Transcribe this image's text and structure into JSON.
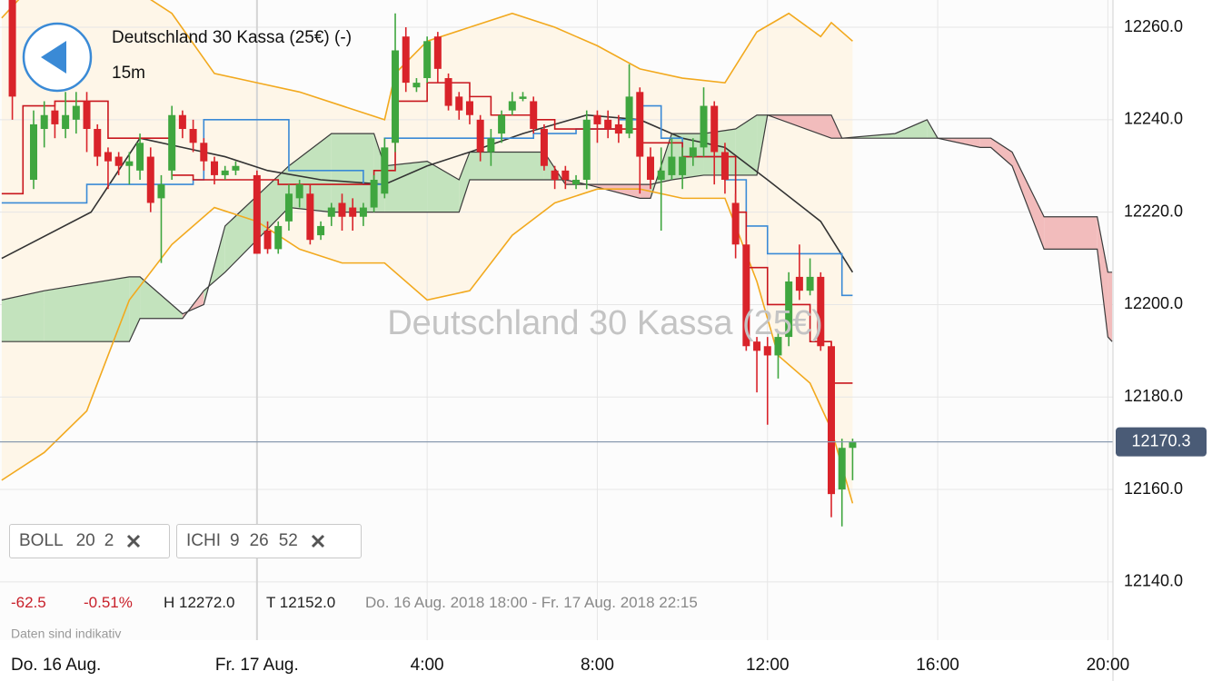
{
  "chart_data": {
    "type": "candlestick",
    "title": "Deutschland 30 Kassa (25€) (-)",
    "interval": "15m",
    "watermark": "Deutschland 30 Kassa (25€)",
    "start_label": "Do. 16 Aug.",
    "x": [
      -5.75,
      -5.25,
      -5,
      -4.75,
      -4.5,
      -4.25,
      -4,
      -3.75,
      -3.5,
      -3.25,
      -3,
      -2.75,
      -2.5,
      -2.25,
      -2,
      -1.75,
      -1.5,
      -1.25,
      -1,
      -0.75,
      -0.5,
      0,
      0.25,
      0.5,
      0.75,
      1,
      1.25,
      1.5,
      1.75,
      2,
      2.25,
      2.5,
      2.75,
      3,
      3.25,
      3.5,
      3.75,
      4,
      4.25,
      4.5,
      4.75,
      5,
      5.25,
      5.5,
      5.75,
      6,
      6.25,
      6.5,
      6.75,
      7,
      7.25,
      7.5,
      7.75,
      8,
      8.25,
      8.5,
      8.75,
      9,
      9.25,
      9.5,
      9.75,
      10,
      10.25,
      10.5,
      10.75,
      11,
      11.25,
      11.5,
      11.75,
      12,
      12.25,
      12.5,
      12.75,
      13,
      13.25,
      13.5,
      13.75,
      14
    ],
    "open": [
      12266,
      12227,
      12238,
      12242,
      12238,
      12240,
      12244,
      12238,
      12233,
      12232,
      12230,
      12229,
      12232,
      12223,
      12229,
      12241,
      12238,
      12235,
      12231,
      12228,
      12229,
      12228,
      12216,
      12212,
      12218,
      12223,
      12224,
      12215,
      12219,
      12222,
      12221,
      12219,
      12221,
      12224,
      12235,
      12258,
      12247,
      12249,
      12258,
      12249,
      12245,
      12244,
      12240,
      12233,
      12237,
      12242,
      12244.5,
      12244,
      12238,
      12229,
      12229,
      12226,
      12227,
      12241,
      12240,
      12239,
      12237,
      12246,
      12232,
      12227,
      12228,
      12228,
      12232,
      12234,
      12243,
      12233,
      12222,
      12213,
      12192,
      12191,
      12189,
      12193,
      12206,
      12203,
      12206,
      12191,
      12160,
      12169
    ],
    "high": [
      12268,
      12242,
      12244,
      12244,
      12246,
      12246,
      12246,
      12239,
      12234,
      12233,
      12233,
      12237,
      12234,
      12228,
      12243,
      12242,
      12240,
      12236,
      12232,
      12230,
      12231,
      12229,
      12218,
      12218,
      12226,
      12227,
      12226,
      12218,
      12222,
      12224,
      12223,
      12222,
      12228,
      12236,
      12263,
      12260,
      12249,
      12258,
      12259,
      12250,
      12246,
      12245,
      12241,
      12238,
      12242,
      12246,
      12246,
      12245,
      12239,
      12230,
      12230,
      12228,
      12242,
      12242,
      12242,
      12241,
      12252,
      12247,
      12234,
      12234,
      12236,
      12234,
      12236,
      12247,
      12244,
      12235,
      12224,
      12214,
      12193,
      12193,
      12194,
      12207,
      12213,
      12210,
      12207,
      12192,
      12171,
      12171
    ],
    "low": [
      12240,
      12225,
      12234,
      12236,
      12236,
      12237,
      12233,
      12230,
      12225,
      12228,
      12226,
      12227,
      12220,
      12209,
      12227,
      12236,
      12233,
      12229,
      12226,
      12227,
      12228,
      12211,
      12211,
      12211,
      12216,
      12221,
      12213,
      12214,
      12217,
      12216,
      12216,
      12217,
      12220,
      12223,
      12233,
      12246,
      12246,
      12248,
      12248,
      12242,
      12240,
      12239,
      12231,
      12230,
      12235,
      12241,
      12244,
      12237,
      12229,
      12225,
      12225,
      12225,
      12225,
      12235,
      12236,
      12235,
      12236,
      12224,
      12225,
      12216,
      12227,
      12225,
      12230,
      12232,
      12226,
      12224,
      12210,
      12190,
      12181,
      12174,
      12184,
      12191,
      12201,
      12202,
      12190,
      12154,
      12152,
      12162
    ],
    "close": [
      12245,
      12239,
      12241,
      12239,
      12241,
      12243,
      12238,
      12232,
      12231,
      12230,
      12231,
      12235,
      12222,
      12226,
      12241,
      12238,
      12235,
      12231,
      12228,
      12229,
      12230,
      12211,
      12212,
      12217,
      12224,
      12226,
      12214,
      12217,
      12221,
      12219,
      12219,
      12221,
      12227,
      12234,
      12255,
      12248,
      12248,
      12257,
      12251,
      12243,
      12242,
      12241,
      12233,
      12236,
      12241,
      12244,
      12245,
      12238,
      12230,
      12227,
      12227,
      12227,
      12240,
      12239,
      12238,
      12237,
      12245,
      12232,
      12227,
      12229,
      12232,
      12232,
      12234,
      12243,
      12233,
      12227,
      12213,
      12191,
      12190,
      12189,
      12193,
      12205,
      12203,
      12206,
      12191,
      12159,
      12169,
      12170.3
    ],
    "up_color": "#3fa63f",
    "down_color": "#d9232a",
    "xlim": [
      -6.04,
      20.12
    ],
    "xticks": [
      {
        "value": 0,
        "label": "Fr. 17 Aug."
      },
      {
        "value": 4,
        "label": "4:00"
      },
      {
        "value": 8,
        "label": "8:00"
      },
      {
        "value": 12,
        "label": "12:00"
      },
      {
        "value": 16,
        "label": "16:00"
      },
      {
        "value": 20,
        "label": "20:00"
      }
    ],
    "ylim": [
      12127.4,
      12265.9
    ],
    "yticks": [
      {
        "value": 12140,
        "label": "12140.0"
      },
      {
        "value": 12160,
        "label": "12160.0"
      },
      {
        "value": 12180,
        "label": "12180.0"
      },
      {
        "value": 12200,
        "label": "12200.0"
      },
      {
        "value": 12220,
        "label": "12220.0"
      },
      {
        "value": 12240,
        "label": "12240.0"
      },
      {
        "value": 12260,
        "label": "12260.0"
      }
    ],
    "grid": true,
    "current_price": 12170.3,
    "bollinger": {
      "fill": "#fef6e8",
      "upper": {
        "color": "#f2a91e",
        "x": [
          -6,
          -5,
          -3.5,
          -2,
          -1,
          0,
          1,
          2,
          3,
          3.25,
          4,
          5,
          6,
          7,
          8,
          9,
          10,
          11,
          11.75,
          12.5,
          13.25,
          13.5,
          14
        ],
        "values": [
          12262,
          12272,
          12272,
          12263,
          12250,
          12248,
          12246,
          12243,
          12240,
          12250,
          12257,
          12260,
          12263,
          12260,
          12256,
          12251,
          12249,
          12248,
          12259,
          12263,
          12258,
          12261,
          12257
        ]
      },
      "middle": {
        "color": "#333333",
        "x": [
          -6,
          -3.9,
          -2.75,
          -1.75,
          -0.75,
          0.25,
          1.5,
          3,
          4,
          5,
          6.25,
          7.75,
          9,
          10,
          11,
          12,
          13.25,
          14
        ],
        "values": [
          12210,
          12220,
          12236,
          12234,
          12232,
          12229,
          12227,
          12226,
          12230,
          12233,
          12237,
          12241,
          12240,
          12236,
          12234,
          12227,
          12218,
          12207
        ]
      },
      "lower": {
        "color": "#f2a91e",
        "x": [
          -6,
          -5,
          -4,
          -3,
          -2,
          -1,
          0,
          1,
          2,
          3,
          4,
          5,
          6,
          7,
          8,
          9,
          10,
          11,
          11.75,
          12.25,
          13,
          13.5,
          14
        ],
        "values": [
          12162,
          12168,
          12177,
          12201,
          12213,
          12221,
          12218,
          12212,
          12209,
          12209,
          12201,
          12203,
          12215,
          12222,
          12225,
          12225,
          12223,
          12223,
          12205,
          12189,
          12183,
          12173,
          12157
        ]
      }
    },
    "ichimoku": {
      "tenkan": {
        "color": "#c8161d",
        "x": [
          -6,
          -5.5,
          -4.75,
          -4,
          -3.5,
          -2.5,
          -2,
          -1.5,
          -0.5,
          0,
          0.5,
          1,
          2,
          2.75,
          3.25,
          4,
          5,
          5.5,
          6.5,
          7,
          7.5,
          8.5,
          9,
          10,
          11,
          11.25,
          11.5,
          12,
          12.5,
          13,
          13.5,
          14
        ],
        "values": [
          12224,
          12243,
          12244,
          12244,
          12236,
          12236,
          12228,
          12227,
          12227,
          12227,
          12226,
          12226,
          12226,
          12229,
          12244,
          12248,
          12245,
          12241,
          12240,
          12238,
          12238,
          12238,
          12235,
          12232,
          12232,
          12220,
          12208,
          12200,
          12200,
          12192,
          12183,
          12183
        ]
      },
      "kijun": {
        "color": "#3a8ad6",
        "x": [
          -6,
          -4,
          -1.5,
          -1.25,
          0.5,
          0.75,
          2.5,
          3,
          3.25,
          6.5,
          7.5,
          8.5,
          9,
          9.5,
          10,
          11,
          11.5,
          12,
          13.5,
          13.75,
          14
        ],
        "values": [
          12222,
          12226,
          12227,
          12240,
          12240,
          12229,
          12226,
          12236,
          12236,
          12237,
          12238,
          12240,
          12243,
          12236,
          12232,
          12227,
          12217,
          12211,
          12211,
          12202,
          12202
        ]
      },
      "cloud": {
        "up_color": "#c3e3bd",
        "down_color": "#f2bcbc",
        "edge_color": "#3b3b3b",
        "x": [
          -6,
          -5,
          -3,
          -2.75,
          -1.75,
          -1.25,
          -0.75,
          0.75,
          1.75,
          2.75,
          3,
          4,
          4.75,
          5,
          6.75,
          7.25,
          7.75,
          9,
          9.25,
          9.75,
          10.5,
          11.25,
          11.75,
          12,
          13.5,
          13.75,
          15,
          15.75,
          16,
          17,
          17.25,
          17.75,
          18.5,
          19.75,
          20,
          20.1
        ],
        "span_a": [
          12201,
          12203,
          12206,
          12206,
          12198,
          12200,
          12217,
          12230,
          12237,
          12237,
          12230,
          12231,
          12227,
          12233,
          12233,
          12226,
          12226,
          12223,
          12223,
          12237,
          12237,
          12238,
          12241,
          12241,
          12236,
          12236,
          12237,
          12240,
          12236,
          12234,
          12234,
          12230,
          12212,
          12212,
          12193,
          12192
        ],
        "span_b": [
          12192,
          12192,
          12192,
          12197,
          12197,
          12203,
          12207,
          12221,
          12220,
          12220,
          12220,
          12220,
          12220,
          12227,
          12227,
          12227,
          12226,
          12226,
          12226,
          12227,
          12228,
          12228,
          12228,
          12241,
          12241,
          12236,
          12236,
          12236,
          12236,
          12236,
          12236,
          12233,
          12219,
          12219,
          12207,
          12207
        ]
      }
    }
  },
  "indicators": [
    {
      "label": "BOLL",
      "params": [
        "20",
        "2"
      ]
    },
    {
      "label": "ICHI",
      "params": [
        "9",
        "26",
        "52"
      ]
    }
  ],
  "info": {
    "change": "-62.5",
    "change_pct": "-0.51%",
    "high": "H 12272.0",
    "low": "T 12152.0",
    "range": "Do. 16 Aug. 2018 18:00 - Fr. 17 Aug. 2018 22:15",
    "note": "Daten sind indikativ"
  }
}
